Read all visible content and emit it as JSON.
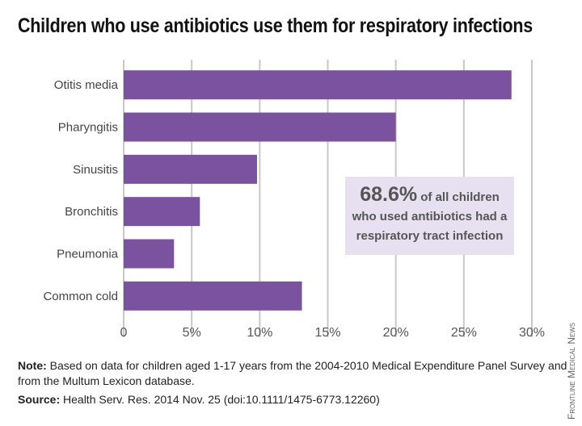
{
  "title": "Children who use antibiotics use them for respiratory infections",
  "chart_data": {
    "type": "bar",
    "orientation": "horizontal",
    "title": "Children who use antibiotics use them for respiratory infections",
    "categories": [
      "Otitis media",
      "Pharyngitis",
      "Sinusitis",
      "Bronchitis",
      "Pneumonia",
      "Common cold"
    ],
    "values": [
      28.5,
      20.0,
      9.8,
      5.6,
      3.7,
      13.1
    ],
    "unit": "%",
    "xlim": [
      0,
      30
    ],
    "xticks": [
      "0",
      "5%",
      "10%",
      "15%",
      "20%",
      "25%",
      "30%"
    ],
    "grid": true,
    "bar_color": "#7b52a0"
  },
  "callout": {
    "value": "68.6%",
    "line1": " of all children",
    "line2": "who used antibiotics had a",
    "line3": "respiratory tract infection"
  },
  "note": {
    "label": "Note:",
    "text": " Based on data for children aged 1-17 years from the 2004-2010 Medical Expenditure Panel Survey and from the Multum Lexicon database."
  },
  "source": {
    "label": "Source:",
    "text": " Health Serv. Res. 2014 Nov. 25 (doi:10.1111/1475-6773.12260)"
  },
  "credit": "Frontline Medical News"
}
